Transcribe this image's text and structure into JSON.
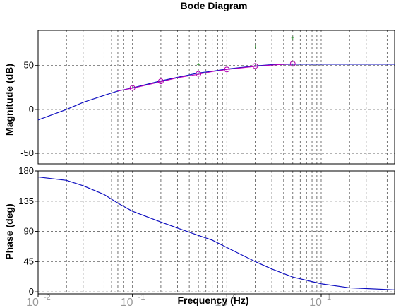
{
  "chart_data": {
    "type": "line",
    "title": "Bode Diagram",
    "xlabel": "Frequency (Hz)",
    "x_scale": "log",
    "xlim": [
      0.01,
      60
    ],
    "xticks": [
      {
        "value": 0.01,
        "base": "10",
        "exp": "-2"
      },
      {
        "value": 0.1,
        "base": "10",
        "exp": "-1"
      },
      {
        "value": 1,
        "base": "10",
        "exp": "0"
      },
      {
        "value": 10,
        "base": "10",
        "exp": "1"
      }
    ],
    "grid": true,
    "colors": {
      "primary_curve": "#1010c0",
      "secondary_curve": "#c000c0",
      "points": "#b000b0",
      "outlier_points": "#1a7f1a",
      "frame": "#000000",
      "grid": "#666666"
    },
    "magnitude": {
      "ylabel": "Magnitude (dB)",
      "ylim": [
        -62,
        90
      ],
      "yticks": [
        -50,
        0,
        50
      ],
      "series": [
        {
          "x": [
            0.01,
            0.02,
            0.03,
            0.05,
            0.07,
            0.1,
            0.2,
            0.3,
            0.5,
            0.7,
            1,
            2,
            3,
            5,
            10,
            20,
            60
          ],
          "values": [
            -12,
            0,
            8,
            16,
            21,
            24.5,
            32.5,
            36.5,
            41.5,
            43.5,
            46,
            49.5,
            51,
            51.5,
            51.5,
            51.5,
            51.5
          ]
        },
        {
          "x": [
            0.07,
            0.1,
            0.2,
            0.3,
            0.5,
            0.7,
            1,
            2,
            3,
            5
          ],
          "values": [
            21.2,
            24,
            31.5,
            36,
            40,
            43,
            45.5,
            49,
            50.5,
            52
          ]
        }
      ],
      "points": [
        {
          "x": 0.1,
          "y": 24.5
        },
        {
          "x": 0.2,
          "y": 32
        },
        {
          "x": 0.5,
          "y": 40.5
        },
        {
          "x": 1,
          "y": 45.5
        },
        {
          "x": 2,
          "y": 49.5
        },
        {
          "x": 5,
          "y": 52
        }
      ],
      "outlier_points": [
        {
          "x": 0.5,
          "y": 51
        },
        {
          "x": 1,
          "y": 60
        },
        {
          "x": 2,
          "y": 71
        },
        {
          "x": 5,
          "y": 81
        }
      ]
    },
    "phase": {
      "ylabel": "Phase (deg)",
      "ylim": [
        -3,
        180
      ],
      "yticks": [
        0,
        45,
        90,
        135,
        180
      ],
      "series": [
        {
          "x": [
            0.01,
            0.02,
            0.03,
            0.05,
            0.07,
            0.1,
            0.2,
            0.3,
            0.5,
            0.7,
            1,
            2,
            3,
            5,
            10,
            20,
            60
          ],
          "values": [
            171,
            166,
            158,
            145,
            132,
            120,
            104,
            95,
            84,
            77,
            66,
            45,
            34,
            22,
            12,
            6,
            3
          ]
        }
      ]
    }
  }
}
